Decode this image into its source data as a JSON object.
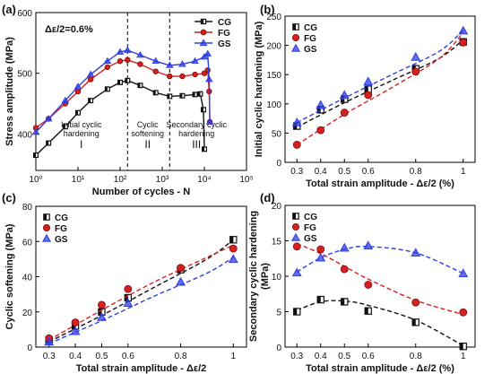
{
  "figure": {
    "colors": {
      "CG": "#111111",
      "FG": "#d62020",
      "GS": "#2f3fe0"
    }
  },
  "chart_data": [
    {
      "panel": "(a)",
      "type": "line",
      "xlabel": "Number of cycles - N",
      "ylabel": "Stress amplitude (MPa)",
      "x_scale": "log",
      "xlim": [
        1,
        100000
      ],
      "ylim": [
        340,
        600
      ],
      "x_ticks": [
        1,
        10,
        100,
        1000,
        10000,
        100000
      ],
      "x_tick_labels": [
        "10⁰",
        "10¹",
        "10²",
        "10³",
        "10⁴",
        "10⁵"
      ],
      "y_ticks": [
        400,
        500,
        600
      ],
      "annotation": "Δε/2=0.6%",
      "vlines": [
        150,
        1500
      ],
      "regions": [
        {
          "line1": "Initial cyclic",
          "line2": "hardening",
          "numeral": "I"
        },
        {
          "line1": "Cyclic",
          "line2": "softening",
          "numeral": "II"
        },
        {
          "line1": "Secondary cyclic",
          "line2": "hardening",
          "numeral": "III"
        }
      ],
      "legend_position": "top-right",
      "series": [
        {
          "name": "CG",
          "marker": "square",
          "x": [
            1,
            2,
            5,
            10,
            20,
            50,
            100,
            150,
            300,
            700,
            1500,
            3000,
            6000,
            8000,
            9500,
            10000
          ],
          "y": [
            365,
            385,
            412,
            435,
            455,
            474,
            485,
            488,
            480,
            468,
            462,
            463,
            465,
            466,
            440,
            375
          ]
        },
        {
          "name": "FG",
          "marker": "circle",
          "x": [
            1,
            2,
            5,
            10,
            20,
            50,
            100,
            150,
            300,
            700,
            1500,
            3000,
            6000,
            10000,
            12000,
            13000,
            13500
          ],
          "y": [
            410,
            425,
            450,
            470,
            490,
            510,
            520,
            522,
            515,
            503,
            495,
            495,
            498,
            500,
            505,
            470,
            420
          ]
        },
        {
          "name": "GS",
          "marker": "triangle",
          "x": [
            1,
            2,
            5,
            10,
            20,
            50,
            100,
            150,
            300,
            700,
            1500,
            3000,
            6000,
            10000,
            12000,
            13000,
            13500
          ],
          "y": [
            403,
            425,
            455,
            478,
            498,
            520,
            535,
            538,
            530,
            520,
            513,
            515,
            520,
            527,
            532,
            490,
            420
          ]
        }
      ]
    },
    {
      "panel": "(b)",
      "type": "scatter",
      "xlabel": "Total strain amplitude - Δε/2 (%)",
      "ylabel": "Initial cyclic hardening (MPa)",
      "xlim": [
        0.25,
        1.05
      ],
      "ylim": [
        0,
        250
      ],
      "x_ticks": [
        0.3,
        0.4,
        0.5,
        0.6,
        0.8,
        1
      ],
      "x_tick_labels": [
        "0.3",
        "0.4",
        "0.5",
        "0.6",
        "0.8",
        "1"
      ],
      "y_ticks": [
        0,
        50,
        100,
        150,
        200,
        250
      ],
      "legend_position": "top-left",
      "series": [
        {
          "name": "CG",
          "marker": "square",
          "x": [
            0.3,
            0.4,
            0.5,
            0.6,
            0.8,
            1
          ],
          "y": [
            62,
            90,
            108,
            125,
            160,
            206
          ],
          "fit": [
            [
              0.3,
              60
            ],
            [
              0.5,
              102
            ],
            [
              0.7,
              140
            ],
            [
              0.9,
              178
            ],
            [
              1.0,
              210
            ]
          ]
        },
        {
          "name": "FG",
          "marker": "circle",
          "x": [
            0.3,
            0.4,
            0.5,
            0.6,
            0.8,
            1
          ],
          "y": [
            30,
            55,
            85,
            115,
            155,
            205
          ],
          "fit": [
            [
              0.3,
              30
            ],
            [
              0.5,
              82
            ],
            [
              0.7,
              128
            ],
            [
              0.9,
              178
            ],
            [
              1.0,
              222
            ]
          ]
        },
        {
          "name": "GS",
          "marker": "triangle",
          "x": [
            0.3,
            0.4,
            0.5,
            0.6,
            0.8,
            1
          ],
          "y": [
            68,
            98,
            115,
            138,
            180,
            225
          ],
          "fit": [
            [
              0.3,
              68
            ],
            [
              0.5,
              110
            ],
            [
              0.7,
              150
            ],
            [
              0.9,
              190
            ],
            [
              1.0,
              226
            ]
          ]
        }
      ]
    },
    {
      "panel": "(c)",
      "type": "scatter",
      "xlabel": "Total strain amplitude - Δε/2",
      "ylabel": "Cyclic softening (MPa)",
      "xlim": [
        0.25,
        1.05
      ],
      "ylim": [
        0,
        80
      ],
      "x_ticks": [
        0.3,
        0.4,
        0.5,
        0.6,
        0.8,
        1
      ],
      "x_tick_labels": [
        "0.3",
        "0.4",
        "0.5",
        "0.6",
        "0.8",
        "1"
      ],
      "y_ticks": [
        0,
        20,
        40,
        60,
        80
      ],
      "legend_position": "top-left",
      "series": [
        {
          "name": "CG",
          "marker": "square",
          "x": [
            0.3,
            0.4,
            0.5,
            0.6,
            0.8,
            1
          ],
          "y": [
            4,
            12,
            20,
            28,
            44,
            61
          ],
          "fit": [
            [
              0.3,
              3
            ],
            [
              0.5,
              18
            ],
            [
              0.7,
              34
            ],
            [
              0.9,
              50
            ],
            [
              1.0,
              61
            ]
          ]
        },
        {
          "name": "FG",
          "marker": "circle",
          "x": [
            0.3,
            0.4,
            0.5,
            0.6,
            0.8,
            1
          ],
          "y": [
            5,
            14,
            24,
            33,
            45,
            56
          ],
          "fit": [
            [
              0.3,
              4
            ],
            [
              0.5,
              21
            ],
            [
              0.7,
              37
            ],
            [
              0.9,
              51
            ],
            [
              1.0,
              58
            ]
          ]
        },
        {
          "name": "GS",
          "marker": "triangle",
          "x": [
            0.3,
            0.4,
            0.5,
            0.6,
            0.8,
            1
          ],
          "y": [
            3,
            9,
            17,
            25,
            37,
            50
          ],
          "fit": [
            [
              0.3,
              2
            ],
            [
              0.5,
              15
            ],
            [
              0.7,
              29
            ],
            [
              0.9,
              42
            ],
            [
              1.0,
              51
            ]
          ]
        }
      ]
    },
    {
      "panel": "(d)",
      "type": "scatter",
      "xlabel": "Total strain amplitude - Δε/2 (%)",
      "ylabel_line1": "Secondary cyclic hardening",
      "ylabel_line2": "(MPa)",
      "xlim": [
        0.25,
        1.05
      ],
      "ylim": [
        0,
        20
      ],
      "x_ticks": [
        0.3,
        0.4,
        0.5,
        0.6,
        0.8,
        1
      ],
      "x_tick_labels": [
        "0.3",
        "0.4",
        "0.5",
        "0.6",
        "0.8",
        "1"
      ],
      "y_ticks": [
        0,
        5,
        10,
        15,
        20
      ],
      "legend_position": "top-left",
      "series": [
        {
          "name": "CG",
          "marker": "square",
          "x": [
            0.3,
            0.4,
            0.5,
            0.6,
            0.8,
            1
          ],
          "y": [
            5,
            6.7,
            6.4,
            5.1,
            3.5,
            0.1
          ],
          "fit": [
            [
              0.3,
              5.2
            ],
            [
              0.4,
              6.4
            ],
            [
              0.5,
              6.5
            ],
            [
              0.6,
              5.9
            ],
            [
              0.8,
              3.8
            ],
            [
              1.0,
              0.2
            ]
          ]
        },
        {
          "name": "FG",
          "marker": "circle",
          "x": [
            0.3,
            0.4,
            0.5,
            0.6,
            0.8,
            1
          ],
          "y": [
            14.2,
            13.8,
            11,
            8.8,
            6.3,
            4.9
          ],
          "fit": [
            [
              0.3,
              14.6
            ],
            [
              0.4,
              13.2
            ],
            [
              0.5,
              11.4
            ],
            [
              0.6,
              9.6
            ],
            [
              0.8,
              6.6
            ],
            [
              1.0,
              4.6
            ]
          ]
        },
        {
          "name": "GS",
          "marker": "triangle",
          "x": [
            0.3,
            0.4,
            0.5,
            0.6,
            0.8,
            1
          ],
          "y": [
            10.5,
            12.6,
            14,
            14.3,
            13.3,
            10.4
          ],
          "fit": [
            [
              0.3,
              10.6
            ],
            [
              0.4,
              12.6
            ],
            [
              0.5,
              13.8
            ],
            [
              0.6,
              14.2
            ],
            [
              0.8,
              13.3
            ],
            [
              1.0,
              10.4
            ]
          ]
        }
      ]
    }
  ]
}
